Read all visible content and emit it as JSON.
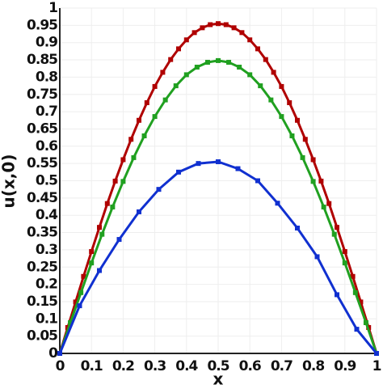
{
  "chart_data": {
    "type": "line",
    "xlabel": "x",
    "ylabel": "u(x,0)",
    "xlim": [
      0,
      1
    ],
    "ylim": [
      0,
      1
    ],
    "xticks": [
      0,
      0.1,
      0.2,
      0.3,
      0.4,
      0.5,
      0.6,
      0.7,
      0.8,
      0.9,
      1
    ],
    "yticks": [
      0,
      0.05,
      0.1,
      0.15,
      0.2,
      0.25,
      0.3,
      0.35,
      0.4,
      0.45,
      0.5,
      0.55,
      0.6,
      0.65,
      0.7,
      0.75,
      0.8,
      0.85,
      0.9,
      0.95,
      1
    ],
    "grid": true,
    "series": [
      {
        "color": "#b00000",
        "x": [
          0,
          0.025,
          0.05,
          0.075,
          0.1,
          0.125,
          0.15,
          0.175,
          0.2,
          0.225,
          0.25,
          0.275,
          0.3,
          0.325,
          0.35,
          0.375,
          0.4,
          0.425,
          0.45,
          0.475,
          0.5,
          0.525,
          0.55,
          0.575,
          0.6,
          0.625,
          0.65,
          0.675,
          0.7,
          0.725,
          0.75,
          0.775,
          0.8,
          0.825,
          0.85,
          0.875,
          0.9,
          0.925,
          0.95,
          0.975,
          1
        ],
        "values": [
          0,
          0.075,
          0.149,
          0.223,
          0.295,
          0.365,
          0.434,
          0.499,
          0.561,
          0.62,
          0.675,
          0.726,
          0.773,
          0.814,
          0.851,
          0.882,
          0.908,
          0.929,
          0.943,
          0.952,
          0.955,
          0.952,
          0.943,
          0.929,
          0.908,
          0.882,
          0.851,
          0.814,
          0.773,
          0.726,
          0.675,
          0.62,
          0.561,
          0.499,
          0.434,
          0.365,
          0.295,
          0.223,
          0.149,
          0.075,
          0
        ]
      },
      {
        "color": "#20a020",
        "x": [
          0,
          0.0333,
          0.0667,
          0.1,
          0.1333,
          0.1667,
          0.2,
          0.2333,
          0.2667,
          0.3,
          0.3333,
          0.3667,
          0.4,
          0.4333,
          0.4667,
          0.5,
          0.5333,
          0.5667,
          0.6,
          0.6333,
          0.6667,
          0.7,
          0.7333,
          0.7667,
          0.8,
          0.8333,
          0.8667,
          0.9,
          0.9333,
          0.9667,
          1
        ],
        "values": [
          0,
          0.089,
          0.176,
          0.262,
          0.345,
          0.424,
          0.498,
          0.567,
          0.63,
          0.686,
          0.734,
          0.775,
          0.807,
          0.829,
          0.843,
          0.848,
          0.843,
          0.829,
          0.807,
          0.775,
          0.734,
          0.686,
          0.63,
          0.567,
          0.498,
          0.424,
          0.345,
          0.262,
          0.176,
          0.089,
          0
        ]
      },
      {
        "color": "#1030d0",
        "x": [
          0,
          0.0625,
          0.125,
          0.1875,
          0.25,
          0.3125,
          0.375,
          0.4375,
          0.5,
          0.5625,
          0.625,
          0.6875,
          0.75,
          0.8125,
          0.875,
          0.9375,
          1
        ],
        "values": [
          0,
          0.138,
          0.24,
          0.33,
          0.41,
          0.475,
          0.525,
          0.55,
          0.555,
          0.535,
          0.5,
          0.435,
          0.363,
          0.28,
          0.17,
          0.07,
          0
        ]
      }
    ]
  }
}
